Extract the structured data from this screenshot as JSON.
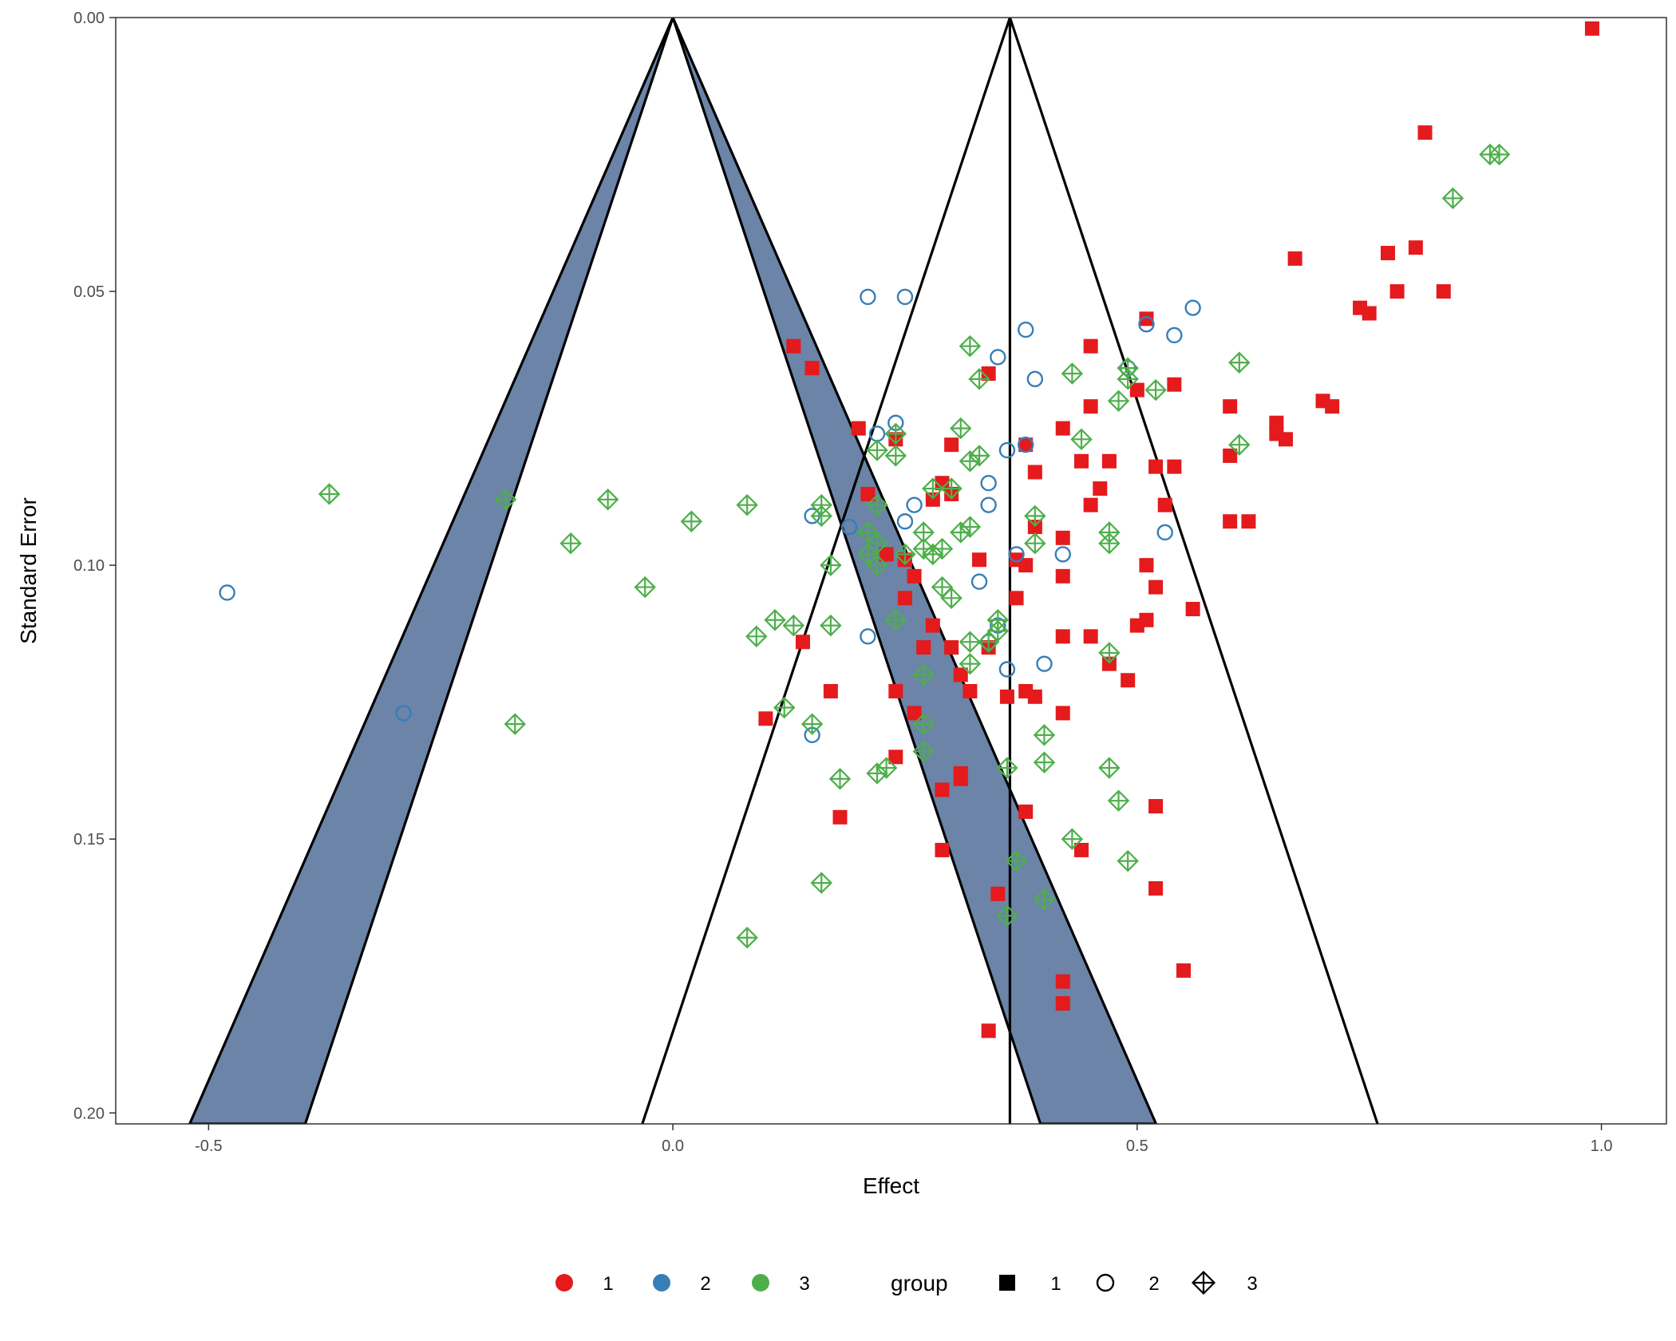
{
  "chart_data": {
    "type": "scatter",
    "subtype": "funnel plot",
    "xlabel": "Effect",
    "ylabel": "Standard Error",
    "xlim": [
      -0.6,
      1.07
    ],
    "ylim": [
      0.0,
      0.202
    ],
    "y_reversed": true,
    "x_ticks": [
      -0.5,
      0.0,
      0.5,
      1.0
    ],
    "x_tick_labels": [
      "-0.5",
      "0.0",
      "0.5",
      "1.0"
    ],
    "y_ticks": [
      0.0,
      0.05,
      0.1,
      0.15,
      0.2
    ],
    "y_tick_labels": [
      "0.00",
      "0.05",
      "0.10",
      "0.15",
      "0.20"
    ],
    "grid": false,
    "legend_position": "bottom",
    "colors": {
      "1": "#e41a1c",
      "2": "#377eb8",
      "3": "#4daf4a",
      "shade": "#6b84a8"
    },
    "legend_color": {
      "title": "",
      "entries": [
        "1",
        "2",
        "3"
      ]
    },
    "legend_shape": {
      "title": "group",
      "entries": [
        "1",
        "2",
        "3"
      ]
    },
    "funnels": [
      {
        "center": 0.0,
        "halfwidth_per_se": 2.576,
        "inner_halfwidth_per_se": 1.96,
        "shaded": true
      },
      {
        "center": 0.363,
        "halfwidth_per_se": 1.96,
        "vertical_line": true
      }
    ],
    "series": [
      {
        "name": "1",
        "shape": "filled-square",
        "points": [
          [
            0.99,
            0.002
          ],
          [
            0.81,
            0.021
          ],
          [
            0.67,
            0.044
          ],
          [
            0.77,
            0.043
          ],
          [
            0.8,
            0.042
          ],
          [
            0.74,
            0.053
          ],
          [
            0.75,
            0.054
          ],
          [
            0.78,
            0.05
          ],
          [
            0.83,
            0.05
          ],
          [
            0.51,
            0.055
          ],
          [
            0.13,
            0.06
          ],
          [
            0.15,
            0.064
          ],
          [
            0.34,
            0.065
          ],
          [
            0.45,
            0.06
          ],
          [
            0.54,
            0.067
          ],
          [
            0.5,
            0.068
          ],
          [
            0.6,
            0.071
          ],
          [
            0.7,
            0.07
          ],
          [
            0.71,
            0.071
          ],
          [
            0.65,
            0.074
          ],
          [
            0.65,
            0.076
          ],
          [
            0.66,
            0.077
          ],
          [
            0.45,
            0.071
          ],
          [
            0.42,
            0.075
          ],
          [
            0.2,
            0.075
          ],
          [
            0.24,
            0.077
          ],
          [
            0.3,
            0.078
          ],
          [
            0.38,
            0.078
          ],
          [
            0.6,
            0.08
          ],
          [
            0.44,
            0.081
          ],
          [
            0.47,
            0.081
          ],
          [
            0.52,
            0.082
          ],
          [
            0.54,
            0.082
          ],
          [
            0.39,
            0.083
          ],
          [
            0.29,
            0.085
          ],
          [
            0.21,
            0.087
          ],
          [
            0.46,
            0.086
          ],
          [
            0.3,
            0.087
          ],
          [
            0.28,
            0.088
          ],
          [
            0.53,
            0.089
          ],
          [
            0.45,
            0.089
          ],
          [
            0.6,
            0.092
          ],
          [
            0.62,
            0.092
          ],
          [
            0.39,
            0.093
          ],
          [
            0.42,
            0.095
          ],
          [
            0.23,
            0.098
          ],
          [
            0.25,
            0.099
          ],
          [
            0.33,
            0.099
          ],
          [
            0.37,
            0.099
          ],
          [
            0.38,
            0.1
          ],
          [
            0.51,
            0.1
          ],
          [
            0.26,
            0.102
          ],
          [
            0.42,
            0.102
          ],
          [
            0.52,
            0.104
          ],
          [
            0.25,
            0.106
          ],
          [
            0.37,
            0.106
          ],
          [
            0.56,
            0.108
          ],
          [
            0.51,
            0.11
          ],
          [
            0.5,
            0.111
          ],
          [
            0.28,
            0.111
          ],
          [
            0.14,
            0.114
          ],
          [
            0.42,
            0.113
          ],
          [
            0.45,
            0.113
          ],
          [
            0.27,
            0.115
          ],
          [
            0.3,
            0.115
          ],
          [
            0.34,
            0.115
          ],
          [
            0.47,
            0.118
          ],
          [
            0.31,
            0.12
          ],
          [
            0.49,
            0.121
          ],
          [
            0.24,
            0.123
          ],
          [
            0.17,
            0.123
          ],
          [
            0.32,
            0.123
          ],
          [
            0.36,
            0.124
          ],
          [
            0.38,
            0.123
          ],
          [
            0.39,
            0.124
          ],
          [
            0.1,
            0.128
          ],
          [
            0.26,
            0.127
          ],
          [
            0.42,
            0.127
          ],
          [
            0.24,
            0.135
          ],
          [
            0.31,
            0.138
          ],
          [
            0.31,
            0.139
          ],
          [
            0.29,
            0.141
          ],
          [
            0.52,
            0.144
          ],
          [
            0.38,
            0.145
          ],
          [
            0.18,
            0.146
          ],
          [
            0.44,
            0.152
          ],
          [
            0.29,
            0.152
          ],
          [
            0.52,
            0.159
          ],
          [
            0.35,
            0.16
          ],
          [
            0.55,
            0.174
          ],
          [
            0.42,
            0.176
          ],
          [
            0.42,
            0.18
          ],
          [
            0.34,
            0.185
          ]
        ]
      },
      {
        "name": "2",
        "shape": "open-circle",
        "points": [
          [
            0.21,
            0.051
          ],
          [
            0.25,
            0.051
          ],
          [
            0.56,
            0.053
          ],
          [
            0.51,
            0.056
          ],
          [
            0.38,
            0.057
          ],
          [
            0.54,
            0.058
          ],
          [
            0.35,
            0.062
          ],
          [
            0.49,
            0.064
          ],
          [
            0.39,
            0.066
          ],
          [
            0.24,
            0.074
          ],
          [
            0.22,
            0.076
          ],
          [
            0.38,
            0.078
          ],
          [
            0.36,
            0.079
          ],
          [
            0.34,
            0.085
          ],
          [
            0.26,
            0.089
          ],
          [
            0.34,
            0.089
          ],
          [
            0.15,
            0.091
          ],
          [
            0.25,
            0.092
          ],
          [
            0.19,
            0.093
          ],
          [
            0.53,
            0.094
          ],
          [
            0.37,
            0.098
          ],
          [
            0.42,
            0.098
          ],
          [
            0.33,
            0.103
          ],
          [
            0.34,
            0.114
          ],
          [
            0.21,
            0.113
          ],
          [
            0.4,
            0.118
          ],
          [
            0.36,
            0.119
          ],
          [
            0.15,
            0.131
          ],
          [
            0.35,
            0.111
          ],
          [
            -0.48,
            0.105
          ],
          [
            -0.29,
            0.127
          ]
        ]
      },
      {
        "name": "3",
        "shape": "crossed-diamond",
        "points": [
          [
            0.88,
            0.025
          ],
          [
            0.89,
            0.025
          ],
          [
            0.84,
            0.033
          ],
          [
            0.32,
            0.06
          ],
          [
            0.61,
            0.063
          ],
          [
            0.33,
            0.066
          ],
          [
            0.43,
            0.065
          ],
          [
            0.49,
            0.064
          ],
          [
            0.49,
            0.066
          ],
          [
            0.52,
            0.068
          ],
          [
            0.48,
            0.07
          ],
          [
            0.31,
            0.075
          ],
          [
            0.24,
            0.076
          ],
          [
            0.44,
            0.077
          ],
          [
            0.61,
            0.078
          ],
          [
            0.22,
            0.079
          ],
          [
            0.24,
            0.08
          ],
          [
            0.33,
            0.08
          ],
          [
            0.32,
            0.081
          ],
          [
            0.28,
            0.086
          ],
          [
            0.3,
            0.086
          ],
          [
            0.22,
            0.089
          ],
          [
            0.16,
            0.089
          ],
          [
            0.16,
            0.091
          ],
          [
            0.39,
            0.091
          ],
          [
            0.32,
            0.093
          ],
          [
            0.21,
            0.094
          ],
          [
            0.31,
            0.094
          ],
          [
            0.27,
            0.094
          ],
          [
            0.22,
            0.096
          ],
          [
            0.47,
            0.094
          ],
          [
            0.47,
            0.096
          ],
          [
            0.27,
            0.097
          ],
          [
            0.29,
            0.097
          ],
          [
            0.39,
            0.096
          ],
          [
            0.21,
            0.098
          ],
          [
            0.28,
            0.098
          ],
          [
            0.25,
            0.098
          ],
          [
            0.22,
            0.1
          ],
          [
            0.17,
            0.1
          ],
          [
            0.29,
            0.104
          ],
          [
            0.3,
            0.106
          ],
          [
            0.35,
            0.11
          ],
          [
            0.35,
            0.112
          ],
          [
            0.24,
            0.11
          ],
          [
            0.17,
            0.111
          ],
          [
            0.13,
            0.111
          ],
          [
            0.11,
            0.11
          ],
          [
            0.09,
            0.113
          ],
          [
            0.32,
            0.114
          ],
          [
            0.34,
            0.114
          ],
          [
            0.32,
            0.118
          ],
          [
            0.47,
            0.116
          ],
          [
            0.27,
            0.12
          ],
          [
            0.12,
            0.126
          ],
          [
            0.27,
            0.129
          ],
          [
            0.15,
            0.129
          ],
          [
            0.4,
            0.131
          ],
          [
            0.27,
            0.134
          ],
          [
            0.47,
            0.137
          ],
          [
            0.4,
            0.136
          ],
          [
            0.36,
            0.137
          ],
          [
            0.23,
            0.137
          ],
          [
            0.22,
            0.138
          ],
          [
            0.18,
            0.139
          ],
          [
            0.48,
            0.143
          ],
          [
            0.43,
            0.15
          ],
          [
            0.37,
            0.154
          ],
          [
            0.49,
            0.154
          ],
          [
            0.16,
            0.158
          ],
          [
            0.4,
            0.161
          ],
          [
            0.36,
            0.164
          ],
          [
            0.08,
            0.168
          ],
          [
            0.08,
            0.089
          ],
          [
            0.02,
            0.092
          ],
          [
            -0.03,
            0.104
          ],
          [
            -0.07,
            0.088
          ],
          [
            -0.11,
            0.096
          ],
          [
            -0.18,
            0.088
          ],
          [
            -0.17,
            0.129
          ],
          [
            -0.37,
            0.087
          ]
        ]
      }
    ]
  }
}
